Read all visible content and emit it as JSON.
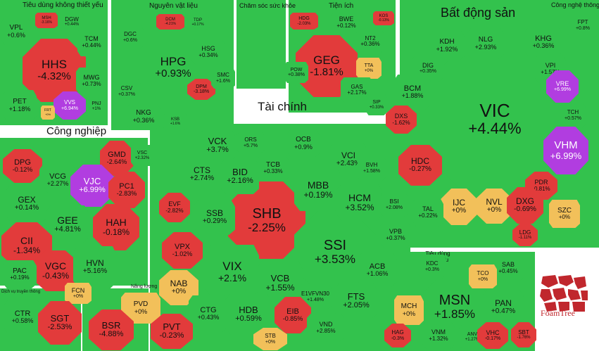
{
  "colors": {
    "green": "#33c24d",
    "dark_green": "#1fa83a",
    "red": "#e23b3b",
    "yellow": "#f2c05a",
    "purple": "#b13de0",
    "border": "#ffffff",
    "brand": "#c0272d"
  },
  "brand": {
    "name": "FoamTree"
  },
  "sectors": [
    {
      "id": "tieu-dung-khong-thiet-yeu",
      "title": "Tiêu dùng không thiết yếu"
    },
    {
      "id": "nguyen-vat-lieu",
      "title": "Nguyên vật liệu"
    },
    {
      "id": "cham-soc-suc-khoe",
      "title": "Chăm sóc sức khỏe"
    },
    {
      "id": "tien-ich",
      "title": "Tiện ích"
    },
    {
      "id": "bat-dong-san",
      "title": "Bất động sản"
    },
    {
      "id": "cong-nghe-thong-tin",
      "title": "Công nghệ thông tin"
    },
    {
      "id": "tai-chinh",
      "title": "Tài chính"
    },
    {
      "id": "cong-nghiep",
      "title": "Công nghiệp"
    },
    {
      "id": "tieu-dung-thiet-yeu",
      "title": "Tiêu dùng thiết yếu"
    },
    {
      "id": "nang-luong",
      "title": "Năng lượng"
    },
    {
      "id": "dich-vu-truyen-thong",
      "title": "Dịch vụ truyền thông"
    }
  ],
  "tiles": [
    {
      "ticker": "HHS",
      "change": "-4.32%",
      "color": "red"
    },
    {
      "ticker": "VPL",
      "change": "+0.6%",
      "color": "green"
    },
    {
      "ticker": "MSH",
      "change": "-3.16%",
      "color": "red"
    },
    {
      "ticker": "DGW",
      "change": "+0.44%",
      "color": "green"
    },
    {
      "ticker": "TCM",
      "change": "+0.44%",
      "color": "green"
    },
    {
      "ticker": "MWG",
      "change": "+0.73%",
      "color": "green"
    },
    {
      "ticker": "PET",
      "change": "+1.18%",
      "color": "green"
    },
    {
      "ticker": "VVS",
      "change": "+6.94%",
      "color": "purple"
    },
    {
      "ticker": "PNJ",
      "change": "+1%",
      "color": "green"
    },
    {
      "ticker": "FRT",
      "change": "+0%",
      "color": "yellow"
    },
    {
      "ticker": "HPG",
      "change": "+0.93%",
      "color": "green"
    },
    {
      "ticker": "DCM",
      "change": "-4.21%",
      "color": "red"
    },
    {
      "ticker": "TDP",
      "change": "+0.17%",
      "color": "green"
    },
    {
      "ticker": "DGC",
      "change": "+0.6%",
      "color": "green"
    },
    {
      "ticker": "HSG",
      "change": "+0.34%",
      "color": "green"
    },
    {
      "ticker": "CSV",
      "change": "+0.37%",
      "color": "green"
    },
    {
      "ticker": "DPM",
      "change": "-3.18%",
      "color": "red"
    },
    {
      "ticker": "SMC",
      "change": "+1.6%",
      "color": "green"
    },
    {
      "ticker": "NKG",
      "change": "+0.36%",
      "color": "green"
    },
    {
      "ticker": "KSB",
      "change": "+1.6%",
      "color": "green"
    },
    {
      "ticker": "GEG",
      "change": "-1.81%",
      "color": "red"
    },
    {
      "ticker": "HDG",
      "change": "-2.03%",
      "color": "red"
    },
    {
      "ticker": "BWE",
      "change": "+0.12%",
      "color": "green"
    },
    {
      "ticker": "KOS",
      "change": "-0.13%",
      "color": "red"
    },
    {
      "ticker": "NT2",
      "change": "+0.36%",
      "color": "green"
    },
    {
      "ticker": "TTA",
      "change": "+0%",
      "color": "yellow"
    },
    {
      "ticker": "POW",
      "change": "+0.38%",
      "color": "green"
    },
    {
      "ticker": "GAS",
      "change": "+2.17%",
      "color": "green"
    },
    {
      "ticker": "VIC",
      "change": "+4.44%",
      "color": "green"
    },
    {
      "ticker": "KDH",
      "change": "+1.92%",
      "color": "green"
    },
    {
      "ticker": "NLG",
      "change": "+2.93%",
      "color": "green"
    },
    {
      "ticker": "KHG",
      "change": "+0.36%",
      "color": "green"
    },
    {
      "ticker": "DIG",
      "change": "+0.35%",
      "color": "green"
    },
    {
      "ticker": "VPI",
      "change": "+1.57%",
      "color": "green"
    },
    {
      "ticker": "VRE",
      "change": "+6.99%",
      "color": "purple"
    },
    {
      "ticker": "BCM",
      "change": "+1.88%",
      "color": "green"
    },
    {
      "ticker": "DXS",
      "change": "-1.62%",
      "color": "red"
    },
    {
      "ticker": "SIP",
      "change": "+0.33%",
      "color": "green"
    },
    {
      "ticker": "TCH",
      "change": "+0.57%",
      "color": "green"
    },
    {
      "ticker": "VHM",
      "change": "+6.99%",
      "color": "purple"
    },
    {
      "ticker": "HDC",
      "change": "-0.27%",
      "color": "red"
    },
    {
      "ticker": "PDR",
      "change": "-0.81%",
      "color": "red"
    },
    {
      "ticker": "IJC",
      "change": "+0%",
      "color": "yellow"
    },
    {
      "ticker": "NVL",
      "change": "+0%",
      "color": "yellow"
    },
    {
      "ticker": "DXG",
      "change": "-0.69%",
      "color": "red"
    },
    {
      "ticker": "SZC",
      "change": "+0%",
      "color": "yellow"
    },
    {
      "ticker": "TAL",
      "change": "+0.22%",
      "color": "green"
    },
    {
      "ticker": "LDG",
      "change": "-1.11%",
      "color": "red"
    },
    {
      "ticker": "FPT",
      "change": "+0.8%",
      "color": "green"
    },
    {
      "ticker": "SHB",
      "change": "-2.25%",
      "color": "red"
    },
    {
      "ticker": "SSI",
      "change": "+3.53%",
      "color": "green"
    },
    {
      "ticker": "VCK",
      "change": "+3.7%",
      "color": "green"
    },
    {
      "ticker": "ORS",
      "change": "+5.7%",
      "color": "green"
    },
    {
      "ticker": "OCB",
      "change": "+0.9%",
      "color": "green"
    },
    {
      "ticker": "VCI",
      "change": "+2.43%",
      "color": "green"
    },
    {
      "ticker": "CTS",
      "change": "+2.74%",
      "color": "green"
    },
    {
      "ticker": "BID",
      "change": "+2.16%",
      "color": "green"
    },
    {
      "ticker": "TCB",
      "change": "+0.33%",
      "color": "green"
    },
    {
      "ticker": "BVH",
      "change": "+1.58%",
      "color": "green"
    },
    {
      "ticker": "MBB",
      "change": "+0.19%",
      "color": "green"
    },
    {
      "ticker": "HCM",
      "change": "+3.52%",
      "color": "green"
    },
    {
      "ticker": "BSI",
      "change": "+2.08%",
      "color": "green"
    },
    {
      "ticker": "EVF",
      "change": "-2.82%",
      "color": "red"
    },
    {
      "ticker": "SSB",
      "change": "+0.29%",
      "color": "green"
    },
    {
      "ticker": "VPB",
      "change": "+0.37%",
      "color": "green"
    },
    {
      "ticker": "VPX",
      "change": "-1.02%",
      "color": "red"
    },
    {
      "ticker": "VIX",
      "change": "+2.1%",
      "color": "green"
    },
    {
      "ticker": "ACB",
      "change": "+1.06%",
      "color": "green"
    },
    {
      "ticker": "NAB",
      "change": "+0%",
      "color": "yellow"
    },
    {
      "ticker": "VCB",
      "change": "+1.55%",
      "color": "green"
    },
    {
      "ticker": "E1VFVN30",
      "change": "+1.48%",
      "color": "green"
    },
    {
      "ticker": "FTS",
      "change": "+2.05%",
      "color": "green"
    },
    {
      "ticker": "CTG",
      "change": "+0.43%",
      "color": "green"
    },
    {
      "ticker": "HDB",
      "change": "+0.59%",
      "color": "green"
    },
    {
      "ticker": "EIB",
      "change": "-0.85%",
      "color": "red"
    },
    {
      "ticker": "VND",
      "change": "+2.85%",
      "color": "green"
    },
    {
      "ticker": "STB",
      "change": "+0%",
      "color": "yellow"
    },
    {
      "ticker": "DPG",
      "change": "-0.12%",
      "color": "red"
    },
    {
      "ticker": "VCG",
      "change": "+2.27%",
      "color": "green"
    },
    {
      "ticker": "GMD",
      "change": "-2.64%",
      "color": "red"
    },
    {
      "ticker": "VJC",
      "change": "+6.99%",
      "color": "purple"
    },
    {
      "ticker": "PC1",
      "change": "-2.83%",
      "color": "red"
    },
    {
      "ticker": "GEX",
      "change": "+0.14%",
      "color": "green"
    },
    {
      "ticker": "GEE",
      "change": "+4.81%",
      "color": "green"
    },
    {
      "ticker": "HAH",
      "change": "-0.18%",
      "color": "red"
    },
    {
      "ticker": "CII",
      "change": "-1.34%",
      "color": "red"
    },
    {
      "ticker": "VGC",
      "change": "-0.43%",
      "color": "red"
    },
    {
      "ticker": "HVN",
      "change": "+5.16%",
      "color": "green"
    },
    {
      "ticker": "PAC",
      "change": "+0.19%",
      "color": "green"
    },
    {
      "ticker": "FCN",
      "change": "+0%",
      "color": "yellow"
    },
    {
      "ticker": "VSC",
      "change": "+2.32%",
      "color": "green"
    },
    {
      "ticker": "CTR",
      "change": "+0.58%",
      "color": "green"
    },
    {
      "ticker": "SGT",
      "change": "-2.53%",
      "color": "red"
    },
    {
      "ticker": "PVD",
      "change": "+0%",
      "color": "yellow"
    },
    {
      "ticker": "BSR",
      "change": "-4.88%",
      "color": "red"
    },
    {
      "ticker": "PVT",
      "change": "-0.23%",
      "color": "red"
    },
    {
      "ticker": "MSN",
      "change": "+1.85%",
      "color": "green"
    },
    {
      "ticker": "KDC",
      "change": "+0.3%",
      "color": "green"
    },
    {
      "ticker": "SAB",
      "change": "+0.45%",
      "color": "green"
    },
    {
      "ticker": "TCO",
      "change": "+0%",
      "color": "yellow"
    },
    {
      "ticker": "MCH",
      "change": "+0%",
      "color": "yellow"
    },
    {
      "ticker": "PAN",
      "change": "+0.47%",
      "color": "green"
    },
    {
      "ticker": "HAG",
      "change": "-0.3%",
      "color": "red"
    },
    {
      "ticker": "VNM",
      "change": "+1.32%",
      "color": "green"
    },
    {
      "ticker": "ANV",
      "change": "+1.27%",
      "color": "green"
    },
    {
      "ticker": "VHC",
      "change": "-0.17%",
      "color": "red"
    },
    {
      "ticker": "SBT",
      "change": "-1.76%",
      "color": "red"
    }
  ]
}
